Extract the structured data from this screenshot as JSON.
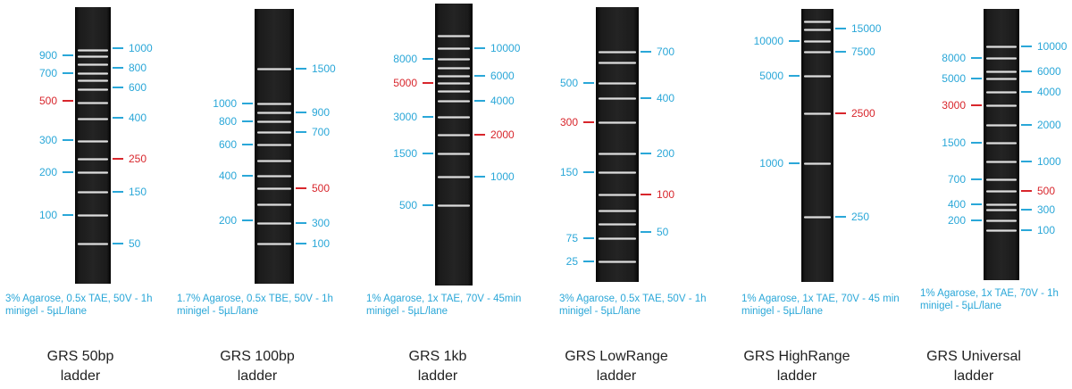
{
  "colors": {
    "marker": "#2aa7d8",
    "highlight": "#d8262c",
    "text": "#222222"
  },
  "ladders": [
    {
      "name_line1": "GRS 50bp",
      "name_line2": "ladder",
      "cond_line1": "3% Agarose, 0.5x TAE, 50V - 1h",
      "cond_line2": "minigel - 5µL/lane",
      "left_labels": [
        {
          "text": "900",
          "red": false
        },
        {
          "text": "700",
          "red": false
        },
        {
          "text": "500",
          "red": true
        },
        {
          "text": "300",
          "red": false
        },
        {
          "text": "200",
          "red": false
        },
        {
          "text": "100",
          "red": false
        }
      ],
      "right_labels": [
        {
          "text": "1000",
          "red": false
        },
        {
          "text": "800",
          "red": false
        },
        {
          "text": "600",
          "red": false
        },
        {
          "text": "400",
          "red": false
        },
        {
          "text": "250",
          "red": true
        },
        {
          "text": "150",
          "red": false
        },
        {
          "text": "50",
          "red": false
        }
      ]
    },
    {
      "name_line1": "GRS 100bp",
      "name_line2": "ladder",
      "cond_line1": "1.7% Agarose, 0.5x TBE, 50V - 1h",
      "cond_line2": "minigel - 5µL/lane",
      "left_labels": [
        {
          "text": "1000",
          "red": false
        },
        {
          "text": "800",
          "red": false
        },
        {
          "text": "600",
          "red": false
        },
        {
          "text": "400",
          "red": false
        },
        {
          "text": "200",
          "red": false
        }
      ],
      "right_labels": [
        {
          "text": "1500",
          "red": false
        },
        {
          "text": "900",
          "red": false
        },
        {
          "text": "700",
          "red": false
        },
        {
          "text": "500",
          "red": true
        },
        {
          "text": "300",
          "red": false
        },
        {
          "text": "100",
          "red": false
        }
      ]
    },
    {
      "name_line1": "GRS 1kb",
      "name_line2": "ladder",
      "cond_line1": "1% Agarose, 1x TAE, 70V - 45min",
      "cond_line2": "minigel - 5µL/lane",
      "left_labels": [
        {
          "text": "8000",
          "red": false
        },
        {
          "text": "5000",
          "red": true
        },
        {
          "text": "3000",
          "red": false
        },
        {
          "text": "1500",
          "red": false
        },
        {
          "text": "500",
          "red": false
        }
      ],
      "right_labels": [
        {
          "text": "10000",
          "red": false
        },
        {
          "text": "6000",
          "red": false
        },
        {
          "text": "4000",
          "red": false
        },
        {
          "text": "2000",
          "red": true
        },
        {
          "text": "1000",
          "red": false
        }
      ]
    },
    {
      "name_line1": "GRS LowRange",
      "name_line2": "ladder",
      "cond_line1": "3% Agarose, 0.5x TAE, 50V - 1h",
      "cond_line2": "minigel - 5µL/lane",
      "left_labels": [
        {
          "text": "500",
          "red": false
        },
        {
          "text": "300",
          "red": true
        },
        {
          "text": "150",
          "red": false
        },
        {
          "text": "75",
          "red": false
        },
        {
          "text": "25",
          "red": false
        }
      ],
      "right_labels": [
        {
          "text": "700",
          "red": false
        },
        {
          "text": "400",
          "red": false
        },
        {
          "text": "200",
          "red": false
        },
        {
          "text": "100",
          "red": true
        },
        {
          "text": "50",
          "red": false
        }
      ]
    },
    {
      "name_line1": "GRS HighRange",
      "name_line2": "ladder",
      "cond_line1": "1% Agarose, 1x TAE, 70V - 45 min",
      "cond_line2": "minigel - 5µL/lane",
      "left_labels": [
        {
          "text": "10000",
          "red": false
        },
        {
          "text": "5000",
          "red": false
        },
        {
          "text": "1000",
          "red": false
        }
      ],
      "right_labels": [
        {
          "text": "15000",
          "red": false
        },
        {
          "text": "7500",
          "red": false
        },
        {
          "text": "2500",
          "red": true
        },
        {
          "text": "250",
          "red": false
        }
      ]
    },
    {
      "name_line1": "GRS Universal",
      "name_line2": "ladder",
      "cond_line1": "1% Agarose, 1x TAE, 70V - 1h",
      "cond_line2": "minigel - 5µL/lane",
      "left_labels": [
        {
          "text": "8000",
          "red": false
        },
        {
          "text": "5000",
          "red": false
        },
        {
          "text": "3000",
          "red": true
        },
        {
          "text": "1500",
          "red": false
        },
        {
          "text": "700",
          "red": false
        },
        {
          "text": "400",
          "red": false
        },
        {
          "text": "200",
          "red": false
        }
      ],
      "right_labels": [
        {
          "text": "10000",
          "red": false
        },
        {
          "text": "6000",
          "red": false
        },
        {
          "text": "4000",
          "red": false
        },
        {
          "text": "2000",
          "red": false
        },
        {
          "text": "1000",
          "red": false
        },
        {
          "text": "500",
          "red": true
        },
        {
          "text": "300",
          "red": false
        },
        {
          "text": "100",
          "red": false
        }
      ]
    }
  ]
}
